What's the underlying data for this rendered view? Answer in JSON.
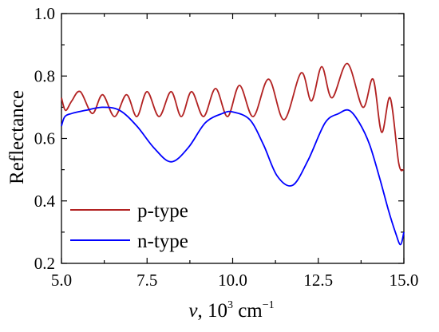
{
  "chart_data": {
    "type": "line",
    "xlabel_symbol": "ν",
    "xlabel_units": ", 10",
    "xlabel_exp": "3",
    "xlabel_unit2": " cm",
    "xlabel_unit2_exp": "−1",
    "ylabel": "Reflectance",
    "xlim": [
      5.0,
      15.0
    ],
    "ylim": [
      0.2,
      1.0
    ],
    "xticks": [
      5.0,
      7.5,
      10.0,
      12.5,
      15.0
    ],
    "xtick_labels": [
      "5.0",
      "7.5",
      "10.0",
      "12.5",
      "15.0"
    ],
    "yticks": [
      0.2,
      0.4,
      0.6,
      0.8,
      1.0
    ],
    "ytick_labels": [
      "0.2",
      "0.4",
      "0.6",
      "0.8",
      "1.0"
    ],
    "grid": false,
    "legend_position": "bottom-left",
    "series": [
      {
        "name": "p-type",
        "color": "#b22222",
        "x": [
          5.0,
          5.12,
          5.3,
          5.55,
          5.9,
          6.2,
          6.55,
          6.9,
          7.2,
          7.5,
          7.85,
          8.2,
          8.5,
          8.8,
          9.15,
          9.5,
          9.85,
          10.2,
          10.6,
          11.05,
          11.5,
          12.0,
          12.3,
          12.6,
          12.9,
          13.35,
          13.8,
          14.1,
          14.35,
          14.6,
          14.85,
          15.0
        ],
        "y": [
          0.73,
          0.69,
          0.72,
          0.75,
          0.68,
          0.74,
          0.67,
          0.74,
          0.67,
          0.75,
          0.67,
          0.75,
          0.67,
          0.75,
          0.67,
          0.76,
          0.67,
          0.77,
          0.67,
          0.79,
          0.66,
          0.81,
          0.72,
          0.83,
          0.73,
          0.84,
          0.7,
          0.79,
          0.62,
          0.73,
          0.52,
          0.5
        ]
      },
      {
        "name": "n-type",
        "color": "#0000ff",
        "x": [
          5.0,
          5.1,
          5.3,
          5.7,
          6.2,
          6.7,
          7.2,
          7.7,
          8.2,
          8.7,
          9.2,
          9.7,
          10.0,
          10.5,
          10.9,
          11.3,
          11.75,
          12.2,
          12.7,
          13.1,
          13.4,
          13.7,
          14.0,
          14.3,
          14.55,
          14.75,
          14.9,
          15.0
        ],
        "y": [
          0.64,
          0.67,
          0.68,
          0.69,
          0.7,
          0.69,
          0.64,
          0.57,
          0.525,
          0.57,
          0.65,
          0.68,
          0.685,
          0.66,
          0.58,
          0.48,
          0.45,
          0.53,
          0.65,
          0.68,
          0.69,
          0.65,
          0.58,
          0.47,
          0.37,
          0.3,
          0.26,
          0.3
        ]
      }
    ]
  }
}
